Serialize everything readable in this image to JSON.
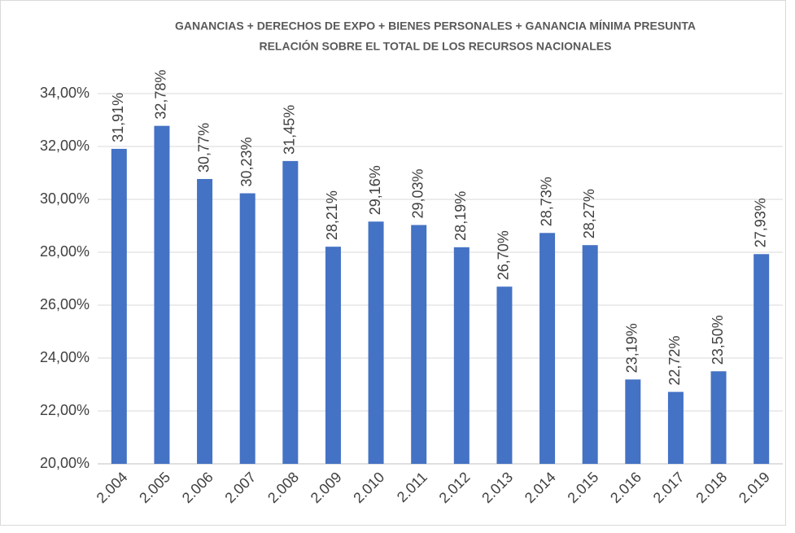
{
  "chart_data": {
    "type": "bar",
    "title": "GANANCIAS + DERECHOS DE EXPO + BIENES PERSONALES + GANANCIA MÍNIMA PRESUNTA",
    "subtitle": "RELACIÓN SOBRE EL TOTAL DE LOS RECURSOS NACIONALES",
    "categories": [
      "2.004",
      "2.005",
      "2.006",
      "2.007",
      "2.008",
      "2.009",
      "2.010",
      "2.011",
      "2.012",
      "2.013",
      "2.014",
      "2.015",
      "2.016",
      "2.017",
      "2.018",
      "2.019"
    ],
    "values": [
      31.91,
      32.78,
      30.77,
      30.23,
      31.45,
      28.21,
      29.16,
      29.03,
      28.19,
      26.7,
      28.73,
      28.27,
      23.19,
      22.72,
      23.5,
      27.93
    ],
    "value_labels": [
      "31,91%",
      "32,78%",
      "30,77%",
      "30,23%",
      "31,45%",
      "28,21%",
      "29,16%",
      "29,03%",
      "28,19%",
      "26,70%",
      "28,73%",
      "28,27%",
      "23,19%",
      "22,72%",
      "23,50%",
      "27,93%"
    ],
    "color": "#4472c4",
    "ylim": [
      20,
      35
    ],
    "yticks": [
      {
        "value": 20,
        "label": "20,00%"
      },
      {
        "value": 22,
        "label": "22,00%"
      },
      {
        "value": 24,
        "label": "24,00%"
      },
      {
        "value": 26,
        "label": "26,00%"
      },
      {
        "value": 28,
        "label": "28,00%"
      },
      {
        "value": 30,
        "label": "30,00%"
      },
      {
        "value": 32,
        "label": "32,00%"
      },
      {
        "value": 34,
        "label": "34,00%"
      }
    ],
    "grid": true
  }
}
